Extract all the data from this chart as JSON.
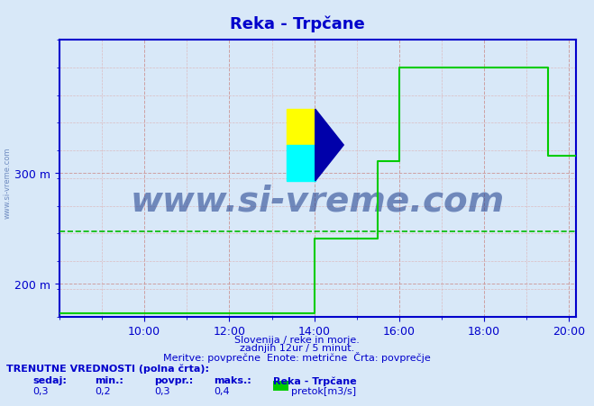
{
  "title": "Reka - Trpčane",
  "title_color": "#0000cc",
  "background_color": "#d8e8f8",
  "plot_bg_color": "#d8e8f8",
  "xlabel_text1": "Slovenija / reke in morje.",
  "xlabel_text2": "zadnjih 12ur / 5 minut.",
  "xlabel_text3": "Meritve: povprečne  Enote: metrične  Črta: povprečje",
  "footer_line1": "TRENUTNE VREDNOSTI (polna črta):",
  "footer_cols": [
    "sedaj:",
    "min.:",
    "povpr.:",
    "maks.:",
    "Reka - Trpčane"
  ],
  "footer_vals": [
    "0,3",
    "0,2",
    "0,3",
    "0,4",
    "pretok[m3/s]"
  ],
  "legend_color": "#00cc00",
  "xmin": 8.0,
  "xmax": 20.167,
  "ymin": 170,
  "ymax": 420,
  "yticks": [
    200,
    300
  ],
  "ytick_labels": [
    "200 m",
    "300 m"
  ],
  "xticks": [
    10,
    12,
    14,
    16,
    18,
    20
  ],
  "xtick_labels": [
    "10:00",
    "12:00",
    "14:00",
    "16:00",
    "18:00",
    "20:00"
  ],
  "avg_line_y": 247,
  "avg_line_color": "#00bb00",
  "line_color": "#00cc00",
  "axis_color": "#0000cc",
  "grid_color_major": "#cc9999",
  "grid_color_minor": "#ddaaaa",
  "watermark": "www.si-vreme.com",
  "watermark_color": "#1a3a8a",
  "sidewatermark": "www.si-vreme.com",
  "x_data": [
    8.0,
    13.9,
    13.9,
    14.0,
    14.0,
    14.5,
    14.5,
    15.0,
    15.0,
    15.5,
    15.5,
    15.7,
    15.7,
    16.0,
    16.0,
    16.5,
    16.5,
    17.0,
    17.0,
    19.3,
    19.3,
    19.5,
    19.5,
    20.167
  ],
  "y_data": [
    173,
    173,
    173,
    173,
    240,
    240,
    240,
    240,
    240,
    240,
    310,
    310,
    310,
    310,
    395,
    395,
    395,
    395,
    395,
    395,
    395,
    395,
    315,
    315
  ]
}
